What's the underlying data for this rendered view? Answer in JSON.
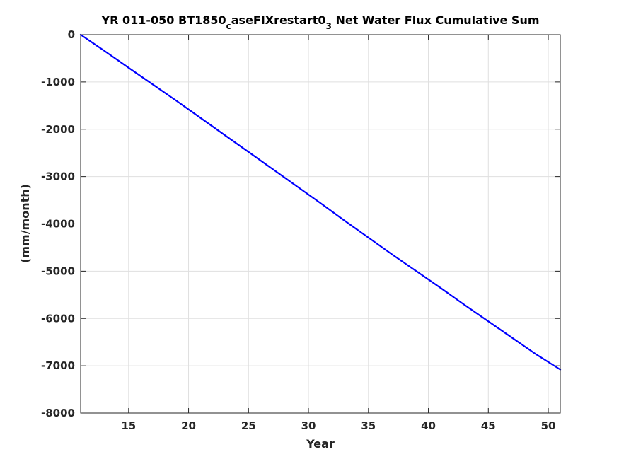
{
  "chart_data": {
    "type": "line",
    "title": {
      "part1": "YR 011-050 BT1850",
      "sub1": "c",
      "part2": "aseFIXrestart0",
      "sub2": "3",
      "part3": " Net Water Flux Cumulative Sum"
    },
    "xlabel": "Year",
    "ylabel": "(mm/month)",
    "xlim": [
      11,
      51
    ],
    "ylim": [
      -8000,
      0
    ],
    "xticks": [
      15,
      20,
      25,
      30,
      35,
      40,
      45,
      50
    ],
    "yticks": [
      0,
      -1000,
      -2000,
      -3000,
      -4000,
      -5000,
      -6000,
      -7000,
      -8000
    ],
    "grid": true,
    "series": [
      {
        "color": "#0000ff",
        "x": [
          11,
          13,
          15,
          17,
          19,
          21,
          23,
          25,
          27,
          29,
          31,
          33,
          35,
          37,
          39,
          41,
          43,
          45,
          47,
          49,
          51
        ],
        "y": [
          0,
          -345,
          -700,
          -1050,
          -1400,
          -1760,
          -2120,
          -2480,
          -2840,
          -3200,
          -3560,
          -3930,
          -4290,
          -4650,
          -5000,
          -5350,
          -5710,
          -6060,
          -6410,
          -6760,
          -7080
        ]
      }
    ]
  }
}
